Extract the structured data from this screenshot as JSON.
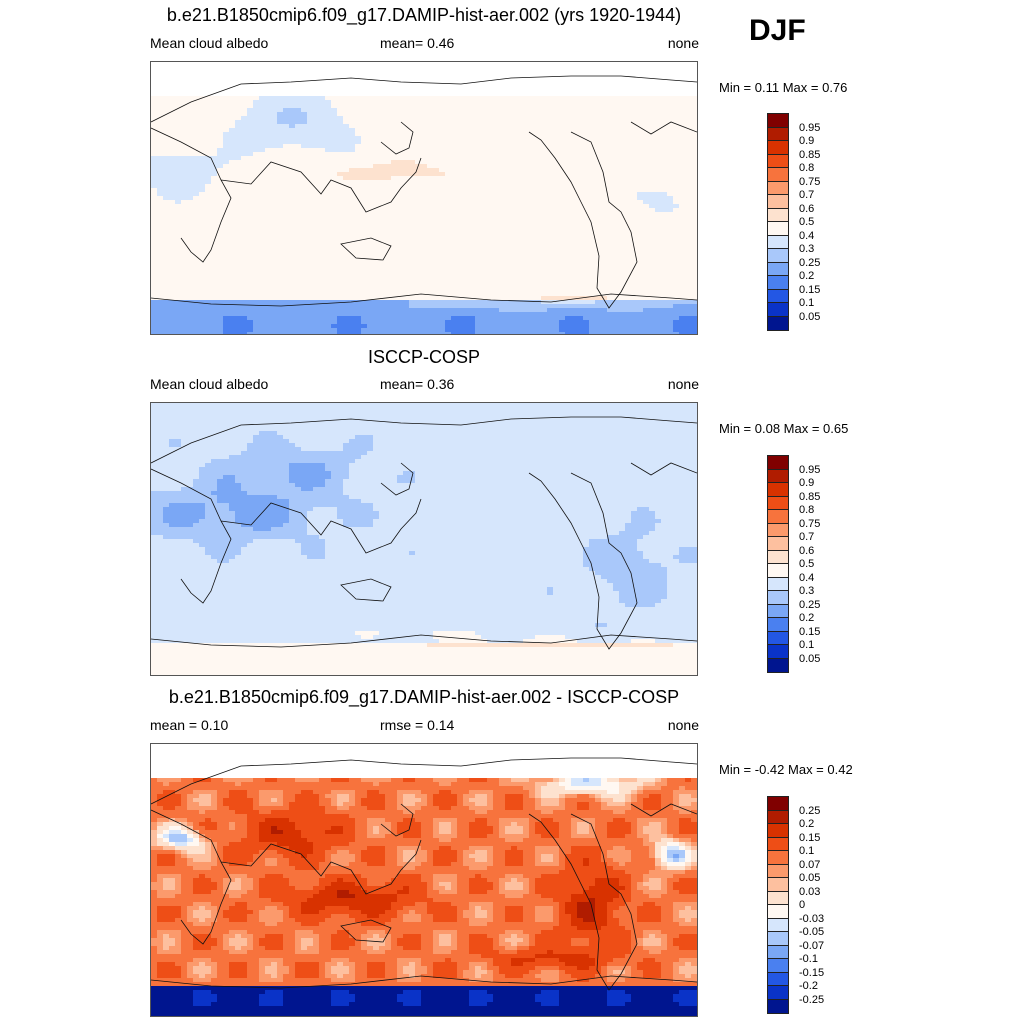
{
  "season_label": "DJF",
  "panels": [
    {
      "title": "b.e21.B1850cmip6.f09_g17.DAMIP-hist-aer.002 (yrs 1920-1944)",
      "left_label": "Mean cloud albedo",
      "center_label": "mean=   0.46",
      "right_label": "none",
      "minmax": "Min =   0.11 Max =   0.76",
      "scale": "albedo",
      "field": "model"
    },
    {
      "title": "ISCCP-COSP",
      "left_label": "Mean cloud albedo",
      "center_label": "mean=   0.36",
      "right_label": "none",
      "minmax": "Min =   0.08 Max =   0.65",
      "scale": "albedo",
      "field": "obs"
    },
    {
      "title": "b.e21.B1850cmip6.f09_g17.DAMIP-hist-aer.002 - ISCCP-COSP",
      "left_label": "mean =   0.10",
      "center_label": "rmse =   0.14",
      "right_label": "none",
      "minmax": "Min =  -0.42 Max =   0.42",
      "scale": "diff",
      "field": "diff"
    }
  ],
  "colorbars": {
    "albedo": {
      "labels": [
        "0.95",
        "0.9",
        "0.85",
        "0.8",
        "0.75",
        "0.7",
        "0.6",
        "0.5",
        "0.4",
        "0.3",
        "0.25",
        "0.2",
        "0.15",
        "0.1",
        "0.05"
      ],
      "colors": [
        "#800000",
        "#b01c00",
        "#d83200",
        "#ee4e16",
        "#f7733d",
        "#fb9a6c",
        "#fdc09f",
        "#fde2cf",
        "#fff8f2",
        "#d6e6fc",
        "#a9c8fa",
        "#7aa7f5",
        "#4a80f0",
        "#2357e4",
        "#0a33c8",
        "#00158f"
      ]
    },
    "diff": {
      "labels": [
        "0.25",
        "0.2",
        "0.15",
        "0.1",
        "0.07",
        "0.05",
        "0.03",
        "0",
        "-0.03",
        "-0.05",
        "-0.07",
        "-0.1",
        "-0.15",
        "-0.2",
        "-0.25"
      ],
      "colors": [
        "#800000",
        "#b01c00",
        "#d83200",
        "#ee4e16",
        "#f7733d",
        "#fb9a6c",
        "#fdc09f",
        "#fde2cf",
        "#fff8f2",
        "#d6e6fc",
        "#a9c8fa",
        "#7aa7f5",
        "#4a80f0",
        "#2357e4",
        "#0a33c8",
        "#00158f"
      ]
    }
  }
}
